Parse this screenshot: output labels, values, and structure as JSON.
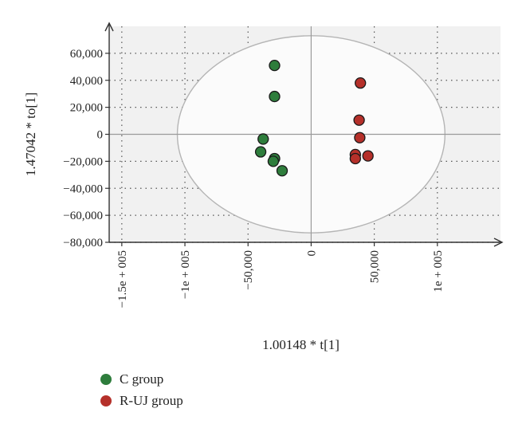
{
  "chart_data": {
    "type": "scatter",
    "xlabel": "1.00148 * t[1]",
    "ylabel": "1.47042 * to[1]",
    "xlim": [
      -160000,
      150000
    ],
    "ylim": [
      -80000,
      80000
    ],
    "x_ticks": [
      {
        "value": -150000,
        "label": "−1.5e + 005"
      },
      {
        "value": -100000,
        "label": "−1e + 005"
      },
      {
        "value": -50000,
        "label": "−50,000"
      },
      {
        "value": 0,
        "label": "0"
      },
      {
        "value": 50000,
        "label": "50,000"
      },
      {
        "value": 100000,
        "label": "1e + 005"
      }
    ],
    "y_ticks": [
      {
        "value": 60000,
        "label": "60,000"
      },
      {
        "value": 40000,
        "label": "40,000"
      },
      {
        "value": 20000,
        "label": "20,000"
      },
      {
        "value": 0,
        "label": "0"
      },
      {
        "value": -20000,
        "label": "−20,000"
      },
      {
        "value": -40000,
        "label": "−40,000"
      },
      {
        "value": -60000,
        "label": "−60,000"
      },
      {
        "value": -80000,
        "label": "−80,000"
      }
    ],
    "ellipse": {
      "cx": 0,
      "cy": 0,
      "rx": 106000,
      "ry": 73000
    },
    "series": [
      {
        "name": "C group",
        "color": "#2e7d3c",
        "points": [
          [
            -29000,
            51000
          ],
          [
            -29000,
            28000
          ],
          [
            -38000,
            -3500
          ],
          [
            -40000,
            -13000
          ],
          [
            -29000,
            -18000
          ],
          [
            -30000,
            -20000
          ],
          [
            -23000,
            -27000
          ]
        ]
      },
      {
        "name": "R-UJ group",
        "color": "#b5302a",
        "points": [
          [
            39000,
            38000
          ],
          [
            38000,
            10500
          ],
          [
            38500,
            -2500
          ],
          [
            35000,
            -15000
          ],
          [
            35000,
            -18000
          ],
          [
            45000,
            -16000
          ]
        ]
      }
    ],
    "grid": true,
    "legend_position": "bottom-left"
  }
}
